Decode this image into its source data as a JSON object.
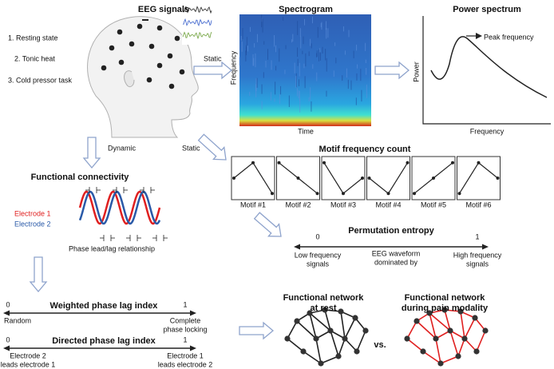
{
  "eeg_signals": {
    "title": "EEG signals",
    "conditions": [
      "1. Resting state",
      "2. Tonic heat",
      "3. Cold pressor task"
    ]
  },
  "arrows": {
    "static_spectrogram": "Static",
    "dynamic": "Dynamic",
    "static_motif": "Static"
  },
  "spectrogram": {
    "title": "Spectrogram",
    "y_label": "Frequency",
    "x_label": "Time"
  },
  "power_spectrum": {
    "title": "Power spectrum",
    "y_label": "Power",
    "x_label": "Frequency",
    "annotation": "Peak frequency"
  },
  "functional_connectivity": {
    "title": "Functional connectivity",
    "legend": [
      "Electrode 1",
      "Electrode 2"
    ],
    "caption": "Phase lead/lag relationship"
  },
  "motif_frequency_count": {
    "title": "Motif frequency count",
    "motifs": [
      "Motif #1",
      "Motif #2",
      "Motif #3",
      "Motif #4",
      "Motif #5",
      "Motif #6"
    ]
  },
  "permutation_entropy": {
    "title": "Permutation entropy",
    "min": 0,
    "max": 1,
    "low": [
      "Low frequency",
      "signals"
    ],
    "middle": [
      "EEG waveform",
      "dominated by"
    ],
    "high": [
      "High frequency",
      "signals"
    ]
  },
  "weighted_phase_lag_index": {
    "title": "Weighted phase lag index",
    "min": 0,
    "max": 1,
    "low": [
      "Random"
    ],
    "high": [
      "Complete",
      "phase locking"
    ]
  },
  "directed_phase_lag_index": {
    "title": "Directed phase lag index",
    "min": 0,
    "max": 1,
    "low": [
      "Electrode 2",
      "leads electrode 1"
    ],
    "high": [
      "Electrode 1",
      "leads electrode 2"
    ]
  },
  "networks": {
    "rest": [
      "Functional network",
      "at rest"
    ],
    "vs": "vs.",
    "pain": [
      "Functional network",
      "during pain modality"
    ]
  }
}
